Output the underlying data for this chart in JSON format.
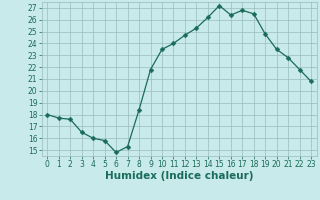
{
  "xlabel": "Humidex (Indice chaleur)",
  "x": [
    0,
    1,
    2,
    3,
    4,
    5,
    6,
    7,
    8,
    9,
    10,
    11,
    12,
    13,
    14,
    15,
    16,
    17,
    18,
    19,
    20,
    21,
    22,
    23
  ],
  "y": [
    18.0,
    17.7,
    17.6,
    16.5,
    16.0,
    15.8,
    14.8,
    15.3,
    18.4,
    21.8,
    23.5,
    24.0,
    24.7,
    25.3,
    26.2,
    27.2,
    26.4,
    26.8,
    26.5,
    24.8,
    23.5,
    22.8,
    21.8,
    20.8
  ],
  "line_color": "#1a6b5a",
  "marker": "D",
  "marker_size": 2.5,
  "background_color": "#c8eaea",
  "grid_color": "#9bbcbc",
  "xlim": [
    -0.5,
    23.5
  ],
  "ylim": [
    14.5,
    27.5
  ],
  "yticks": [
    15,
    16,
    17,
    18,
    19,
    20,
    21,
    22,
    23,
    24,
    25,
    26,
    27
  ],
  "xticks": [
    0,
    1,
    2,
    3,
    4,
    5,
    6,
    7,
    8,
    9,
    10,
    11,
    12,
    13,
    14,
    15,
    16,
    17,
    18,
    19,
    20,
    21,
    22,
    23
  ],
  "tick_label_fontsize": 5.5,
  "xlabel_fontsize": 7.5
}
